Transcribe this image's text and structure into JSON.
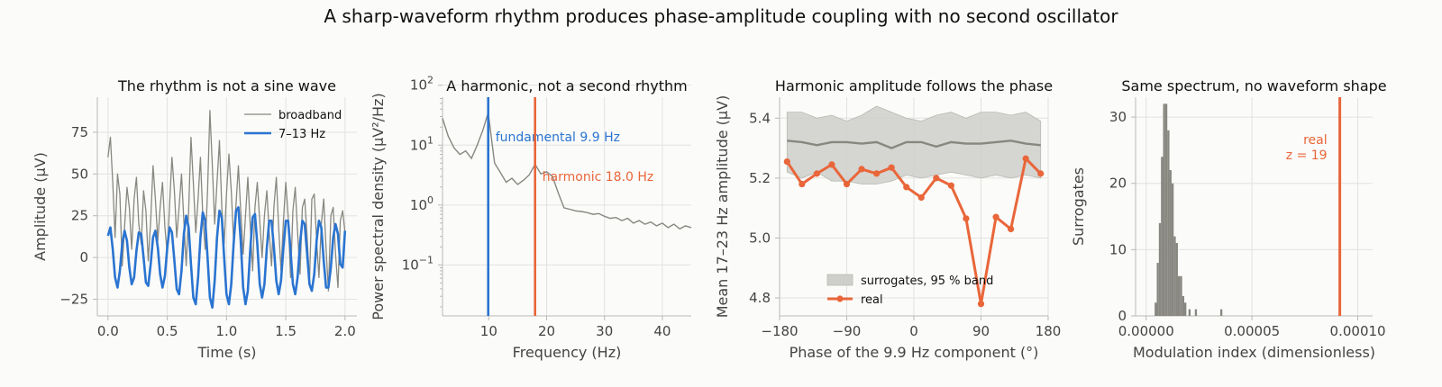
{
  "figure": {
    "title": "A sharp-waveform rhythm produces phase-amplitude coupling with no second oscillator"
  },
  "colors": {
    "broadband": "#888780",
    "filtered": "#2a74d1",
    "harmonic": "#e9663a",
    "surrogate_band": "#cececa",
    "surrogate_line": "#888780",
    "hist": "#888780"
  },
  "chart_data": [
    {
      "type": "line",
      "title": "The rhythm is not a sine wave",
      "xlabel": "Time (s)",
      "ylabel": "Amplitude (µV)",
      "xlim": [
        -0.09,
        2.1
      ],
      "ylim": [
        -35,
        96
      ],
      "xticks": [
        0.0,
        0.5,
        1.0,
        1.5,
        2.0
      ],
      "xtick_labels": [
        "0.0",
        "0.5",
        "1.0",
        "1.5",
        "2.0"
      ],
      "yticks": [
        -25,
        0,
        25,
        50,
        75
      ],
      "ytick_labels": [
        "−25",
        "0",
        "25",
        "50",
        "75"
      ],
      "grid": true,
      "legend": "top-right",
      "series": [
        {
          "name": "broadband",
          "x": [
            0.0,
            0.02,
            0.04,
            0.06,
            0.08,
            0.1,
            0.12,
            0.14,
            0.16,
            0.18,
            0.2,
            0.22,
            0.24,
            0.26,
            0.28,
            0.3,
            0.32,
            0.34,
            0.36,
            0.38,
            0.4,
            0.42,
            0.44,
            0.46,
            0.48,
            0.5,
            0.52,
            0.54,
            0.56,
            0.58,
            0.6,
            0.62,
            0.64,
            0.66,
            0.68,
            0.7,
            0.72,
            0.74,
            0.76,
            0.78,
            0.8,
            0.82,
            0.84,
            0.86,
            0.88,
            0.9,
            0.92,
            0.94,
            0.96,
            0.98,
            1.0,
            1.02,
            1.04,
            1.06,
            1.08,
            1.1,
            1.12,
            1.14,
            1.16,
            1.18,
            1.2,
            1.22,
            1.24,
            1.26,
            1.28,
            1.3,
            1.32,
            1.34,
            1.36,
            1.38,
            1.4,
            1.42,
            1.44,
            1.46,
            1.48,
            1.5,
            1.52,
            1.54,
            1.56,
            1.58,
            1.6,
            1.62,
            1.64,
            1.66,
            1.68,
            1.7,
            1.72,
            1.74,
            1.76,
            1.78,
            1.8,
            1.82,
            1.84,
            1.86,
            1.88,
            1.9,
            1.92,
            1.94,
            1.96,
            1.98,
            2.0
          ],
          "y": [
            60,
            72,
            45,
            12,
            50,
            38,
            -5,
            18,
            42,
            30,
            5,
            35,
            48,
            20,
            8,
            40,
            28,
            -2,
            22,
            55,
            35,
            10,
            30,
            45,
            18,
            2,
            32,
            60,
            40,
            12,
            30,
            50,
            22,
            -5,
            28,
            72,
            45,
            15,
            35,
            60,
            25,
            5,
            40,
            88,
            55,
            20,
            45,
            70,
            30,
            8,
            38,
            62,
            40,
            10,
            32,
            55,
            28,
            2,
            25,
            48,
            20,
            -8,
            30,
            45,
            22,
            0,
            25,
            40,
            15,
            -5,
            30,
            48,
            18,
            -8,
            22,
            45,
            25,
            -12,
            28,
            42,
            15,
            -10,
            30,
            35,
            12,
            -15,
            35,
            38,
            10,
            -12,
            20,
            35,
            5,
            -20,
            25,
            30,
            2,
            -18,
            22,
            28,
            15
          ]
        },
        {
          "name": "7–13 Hz",
          "x": [
            0.0,
            0.02,
            0.04,
            0.06,
            0.08,
            0.1,
            0.12,
            0.14,
            0.16,
            0.18,
            0.2,
            0.22,
            0.24,
            0.26,
            0.28,
            0.3,
            0.32,
            0.34,
            0.36,
            0.38,
            0.4,
            0.42,
            0.44,
            0.46,
            0.48,
            0.5,
            0.52,
            0.54,
            0.56,
            0.58,
            0.6,
            0.62,
            0.64,
            0.66,
            0.68,
            0.7,
            0.72,
            0.74,
            0.76,
            0.78,
            0.8,
            0.82,
            0.84,
            0.86,
            0.88,
            0.9,
            0.92,
            0.94,
            0.96,
            0.98,
            1.0,
            1.02,
            1.04,
            1.06,
            1.08,
            1.1,
            1.12,
            1.14,
            1.16,
            1.18,
            1.2,
            1.22,
            1.24,
            1.26,
            1.28,
            1.3,
            1.32,
            1.34,
            1.36,
            1.38,
            1.4,
            1.42,
            1.44,
            1.46,
            1.48,
            1.5,
            1.52,
            1.54,
            1.56,
            1.58,
            1.6,
            1.62,
            1.64,
            1.66,
            1.68,
            1.7,
            1.72,
            1.74,
            1.76,
            1.78,
            1.8,
            1.82,
            1.84,
            1.86,
            1.88,
            1.9,
            1.92,
            1.94,
            1.96,
            1.98,
            2.0
          ],
          "y": [
            13,
            18,
            5,
            -12,
            -18,
            -8,
            8,
            16,
            10,
            -6,
            -16,
            -12,
            4,
            15,
            14,
            0,
            -15,
            -17,
            -4,
            12,
            16,
            6,
            -10,
            -18,
            -11,
            6,
            18,
            15,
            -2,
            -19,
            -22,
            -8,
            14,
            25,
            18,
            -4,
            -24,
            -28,
            -12,
            12,
            27,
            22,
            0,
            -24,
            -30,
            -14,
            12,
            28,
            24,
            0,
            -22,
            -28,
            -16,
            8,
            28,
            30,
            10,
            -18,
            -28,
            -20,
            4,
            24,
            26,
            8,
            -16,
            -24,
            -16,
            6,
            22,
            22,
            6,
            -14,
            -22,
            -14,
            6,
            22,
            22,
            4,
            -16,
            -22,
            -12,
            8,
            22,
            20,
            2,
            -16,
            -20,
            -10,
            10,
            22,
            18,
            -2,
            -18,
            -18,
            -6,
            12,
            20,
            14,
            -4,
            -6,
            16
          ]
        }
      ]
    },
    {
      "type": "line",
      "title": "A harmonic, not a second rhythm",
      "xlabel": "Frequency (Hz)",
      "ylabel": "Power spectral density (µV²/Hz)",
      "xlim": [
        2,
        45
      ],
      "ylim_log10": [
        -1.85,
        1.8
      ],
      "yscale": "log",
      "xticks": [
        10,
        20,
        30,
        40
      ],
      "xtick_labels": [
        "10",
        "20",
        "30",
        "40"
      ],
      "yticks_log10": [
        -1,
        0,
        1,
        2
      ],
      "ytick_labels": [
        "10",
        "10",
        "10",
        "10"
      ],
      "ytick_exponents": [
        "−1",
        "0",
        "1",
        "2"
      ],
      "grid": true,
      "series": [
        {
          "name": "",
          "x": [
            2,
            3,
            4,
            5,
            6,
            7,
            8,
            9,
            9.9,
            10.5,
            11,
            12,
            13,
            14,
            15,
            16,
            17,
            18,
            19,
            20,
            21,
            22,
            23,
            24,
            25,
            26,
            27,
            28,
            29,
            30,
            31,
            32,
            33,
            34,
            35,
            36,
            37,
            38,
            39,
            40,
            41,
            42,
            43,
            44,
            45
          ],
          "y": [
            28,
            14,
            9,
            7,
            8,
            6,
            10,
            18,
            35,
            12,
            5,
            3.5,
            2.4,
            2.8,
            2.2,
            2.6,
            3.2,
            4.8,
            3.3,
            3.6,
            3.0,
            1.6,
            0.9,
            0.85,
            0.8,
            0.78,
            0.75,
            0.7,
            0.72,
            0.65,
            0.6,
            0.62,
            0.55,
            0.6,
            0.5,
            0.55,
            0.48,
            0.52,
            0.45,
            0.5,
            0.42,
            0.48,
            0.4,
            0.45,
            0.42
          ]
        }
      ],
      "vlines": [
        {
          "x": 9.9,
          "label": "fundamental 9.9 Hz",
          "color": "#2a74d1"
        },
        {
          "x": 18.0,
          "label": "harmonic 18.0 Hz",
          "color": "#e9663a"
        }
      ]
    },
    {
      "type": "line",
      "title": "Harmonic amplitude follows the phase",
      "xlabel": "Phase of the 9.9 Hz component (°)",
      "ylabel": "Mean 17–23 Hz amplitude (µV)",
      "xlim": [
        -180,
        180
      ],
      "ylim": [
        4.74,
        5.47
      ],
      "xticks": [
        -180,
        -90,
        0,
        90,
        180
      ],
      "xtick_labels": [
        "−180",
        "−90",
        "0",
        "90",
        "180"
      ],
      "yticks": [
        4.8,
        5.0,
        5.2,
        5.4
      ],
      "ytick_labels": [
        "4.8",
        "5.0",
        "5.2",
        "5.4"
      ],
      "grid": true,
      "legend": "bottom-center",
      "band": {
        "name": "surrogates, 95 % band",
        "x": [
          -170,
          -150,
          -130,
          -110,
          -90,
          -70,
          -50,
          -30,
          -10,
          10,
          30,
          50,
          70,
          90,
          110,
          130,
          150,
          170
        ],
        "lower": [
          5.22,
          5.2,
          5.22,
          5.19,
          5.19,
          5.18,
          5.18,
          5.19,
          5.21,
          5.2,
          5.21,
          5.22,
          5.21,
          5.2,
          5.21,
          5.2,
          5.21,
          5.2
        ],
        "upper": [
          5.42,
          5.42,
          5.4,
          5.41,
          5.39,
          5.41,
          5.44,
          5.42,
          5.4,
          5.39,
          5.41,
          5.42,
          5.4,
          5.42,
          5.42,
          5.41,
          5.42,
          5.39
        ],
        "mean": [
          5.325,
          5.32,
          5.31,
          5.32,
          5.32,
          5.315,
          5.32,
          5.3,
          5.32,
          5.32,
          5.305,
          5.32,
          5.315,
          5.315,
          5.32,
          5.325,
          5.315,
          5.31
        ]
      },
      "series": [
        {
          "name": "real",
          "x": [
            -170,
            -150,
            -130,
            -110,
            -90,
            -70,
            -50,
            -30,
            -10,
            10,
            30,
            50,
            70,
            90,
            110,
            130,
            150,
            170
          ],
          "y": [
            5.255,
            5.18,
            5.215,
            5.245,
            5.18,
            5.23,
            5.215,
            5.235,
            5.17,
            5.135,
            5.2,
            5.175,
            5.065,
            4.78,
            5.07,
            5.03,
            5.265,
            5.215
          ]
        }
      ]
    },
    {
      "type": "bar",
      "title": "Same spectrum, no waveform shape",
      "xlabel": "Modulation index (dimensionless)",
      "ylabel": "Surrogates",
      "xlim": [
        -5e-06,
        0.000107
      ],
      "ylim": [
        0,
        33
      ],
      "xticks": [
        0.0,
        5e-05,
        0.0001
      ],
      "xtick_labels": [
        "0.00000",
        "0.00005",
        "0.00010"
      ],
      "yticks": [
        0,
        10,
        20,
        30
      ],
      "ytick_labels": [
        "0",
        "10",
        "20",
        "30"
      ],
      "grid": true,
      "bins": [
        {
          "x0": 4e-06,
          "x1": 5e-06,
          "count": 2
        },
        {
          "x0": 5e-06,
          "x1": 6e-06,
          "count": 8
        },
        {
          "x0": 6e-06,
          "x1": 7e-06,
          "count": 14
        },
        {
          "x0": 7e-06,
          "x1": 8e-06,
          "count": 24
        },
        {
          "x0": 8e-06,
          "x1": 9e-06,
          "count": 32
        },
        {
          "x0": 9e-06,
          "x1": 1e-05,
          "count": 32
        },
        {
          "x0": 1e-05,
          "x1": 1.1e-05,
          "count": 28
        },
        {
          "x0": 1.1e-05,
          "x1": 1.2e-05,
          "count": 22
        },
        {
          "x0": 1.2e-05,
          "x1": 1.3e-05,
          "count": 20
        },
        {
          "x0": 1.3e-05,
          "x1": 1.4e-05,
          "count": 12
        },
        {
          "x0": 1.4e-05,
          "x1": 1.5e-05,
          "count": 11
        },
        {
          "x0": 1.5e-05,
          "x1": 1.6e-05,
          "count": 6
        },
        {
          "x0": 1.6e-05,
          "x1": 1.7e-05,
          "count": 6
        },
        {
          "x0": 1.7e-05,
          "x1": 1.8e-05,
          "count": 3
        },
        {
          "x0": 1.8e-05,
          "x1": 1.9e-05,
          "count": 2
        },
        {
          "x0": 2e-05,
          "x1": 2.1e-05,
          "count": 1
        },
        {
          "x0": 2.3e-05,
          "x1": 2.4e-05,
          "count": 1
        },
        {
          "x0": 3.5e-05,
          "x1": 3.6e-05,
          "count": 1
        }
      ],
      "vlines": [
        {
          "x": 9.15e-05,
          "label": "real",
          "label2": "z = 19",
          "color": "#e9663a"
        }
      ]
    }
  ]
}
